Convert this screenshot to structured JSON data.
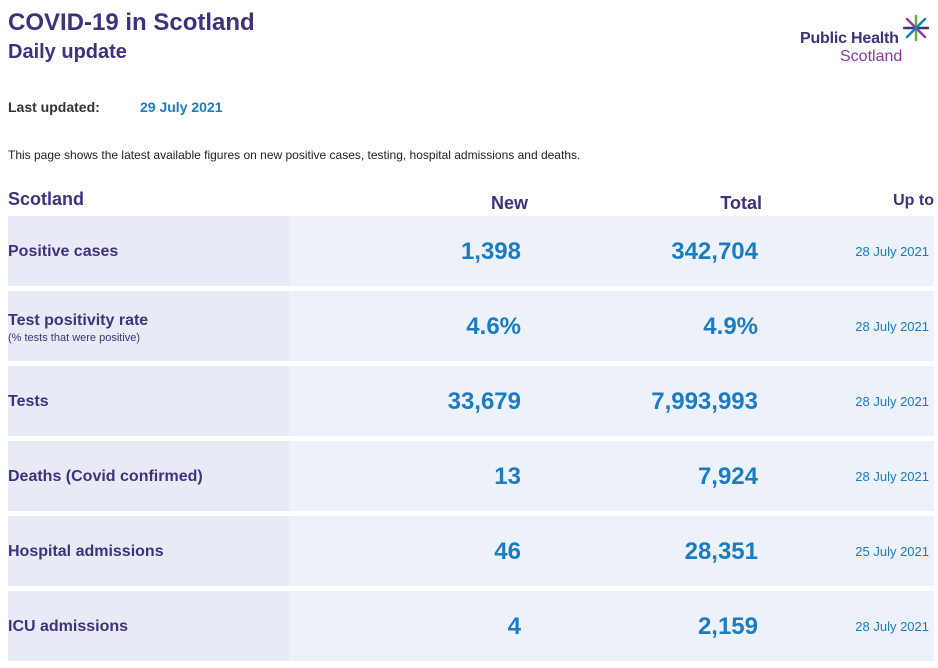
{
  "header": {
    "title": "COVID-19 in Scotland",
    "subtitle": "Daily update",
    "logo_line1": "Public Health",
    "logo_line2": "Scotland"
  },
  "updated": {
    "label": "Last updated:",
    "value": "29 July 2021"
  },
  "intro": "This page shows the latest available figures on new positive cases, testing, hospital admissions and deaths.",
  "table": {
    "headers": {
      "area": "Scotland",
      "new": "New",
      "total": "Total",
      "up_to": "Up to"
    },
    "rows": [
      {
        "label": "Positive cases",
        "sublabel": "",
        "new": "1,398",
        "total": "342,704",
        "date": "28 July 2021"
      },
      {
        "label": "Test positivity rate",
        "sublabel": "(% tests that were positive)",
        "new": "4.6%",
        "total": "4.9%",
        "date": "28 July 2021"
      },
      {
        "label": "Tests",
        "sublabel": "",
        "new": "33,679",
        "total": "7,993,993",
        "date": "28 July 2021"
      },
      {
        "label": "Deaths (Covid confirmed)",
        "sublabel": "",
        "new": "13",
        "total": "7,924",
        "date": "28 July 2021"
      },
      {
        "label": "Hospital admissions",
        "sublabel": "",
        "new": "46",
        "total": "28,351",
        "date": "25 July 2021"
      },
      {
        "label": "ICU admissions",
        "sublabel": "",
        "new": "4",
        "total": "2,159",
        "date": "28 July 2021"
      }
    ]
  },
  "colors": {
    "primary": "#3f317e",
    "accent": "#1a7dc4",
    "row_bg": "#edf1f9",
    "label_bg": "#e7ebf6",
    "logo_purple": "#8a3aa0",
    "logo_green": "#5cb531"
  },
  "icons": {
    "logo_mark": "asterisk-star-icon"
  }
}
